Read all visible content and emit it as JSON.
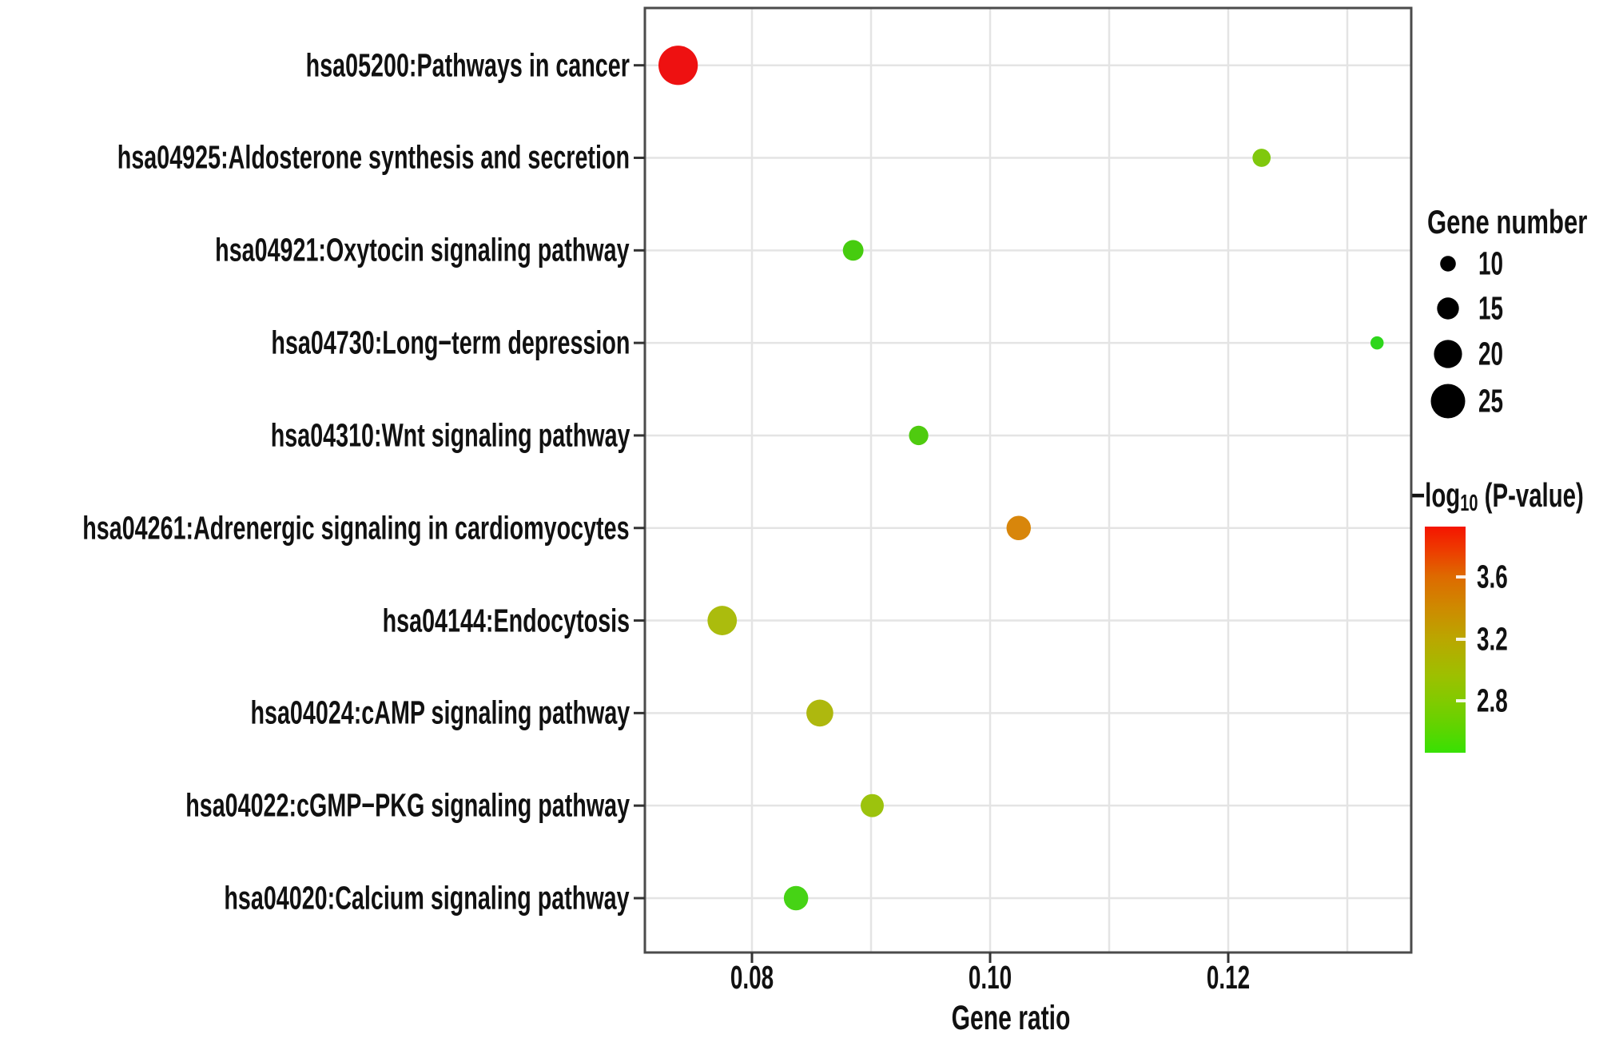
{
  "chart_data": {
    "type": "scatter",
    "xlabel": "Gene ratio",
    "x_axis": {
      "range": [
        0.071,
        0.1353
      ],
      "ticks": [
        {
          "value": 0.08,
          "label": "0.08"
        },
        {
          "value": 0.1,
          "label": "0.10"
        },
        {
          "value": 0.12,
          "label": "0.12"
        }
      ],
      "gridlines": [
        0.08,
        0.09,
        0.1,
        0.11,
        0.12,
        0.13
      ]
    },
    "points": [
      {
        "pathway": "hsa05200:Pathways in cancer",
        "gene_ratio": 0.0738,
        "gene_number": 29,
        "neg_log10_p": 3.9,
        "color": "#EE1111"
      },
      {
        "pathway": "hsa04925:Aldosterone synthesis and secretion",
        "gene_ratio": 0.1228,
        "gene_number": 12,
        "neg_log10_p": 2.82,
        "color": "#80C80D"
      },
      {
        "pathway": "hsa04921:Oxytocin signaling pathway",
        "gene_ratio": 0.0885,
        "gene_number": 14,
        "neg_log10_p": 2.68,
        "color": "#46CC0F"
      },
      {
        "pathway": "hsa04730:Long−term depression",
        "gene_ratio": 0.1325,
        "gene_number": 8,
        "neg_log10_p": 2.55,
        "color": "#2ED61C"
      },
      {
        "pathway": "hsa04310:Wnt signaling pathway",
        "gene_ratio": 0.094,
        "gene_number": 13,
        "neg_log10_p": 2.7,
        "color": "#4FCB0F"
      },
      {
        "pathway": "hsa04261:Adrenergic signaling in cardiomyocytes",
        "gene_ratio": 0.1024,
        "gene_number": 17,
        "neg_log10_p": 3.42,
        "color": "#D8860B"
      },
      {
        "pathway": "hsa04144:Endocytosis",
        "gene_ratio": 0.0775,
        "gene_number": 21,
        "neg_log10_p": 3.1,
        "color": "#ABBC0D"
      },
      {
        "pathway": "hsa04024:cAMP signaling pathway",
        "gene_ratio": 0.0857,
        "gene_number": 19,
        "neg_log10_p": 3.08,
        "color": "#AEB80E"
      },
      {
        "pathway": "hsa04022:cGMP−PKG signaling pathway",
        "gene_ratio": 0.0901,
        "gene_number": 16,
        "neg_log10_p": 2.95,
        "color": "#9CC30D"
      },
      {
        "pathway": "hsa04020:Calcium signaling pathway",
        "gene_ratio": 0.0837,
        "gene_number": 17,
        "neg_log10_p": 2.62,
        "color": "#46D315"
      }
    ],
    "legend_size": {
      "title": "Gene number",
      "dot_color": "#000000",
      "items": [
        {
          "value": 10,
          "label": "10"
        },
        {
          "value": 15,
          "label": "15"
        },
        {
          "value": 20,
          "label": "20"
        },
        {
          "value": 25,
          "label": "25"
        }
      ]
    },
    "legend_color": {
      "title_prefix": "−log",
      "title_sub": "10",
      "title_suffix": " (P-value)",
      "domain": [
        2.49,
        3.96
      ],
      "ticks": [
        {
          "value": 3.6,
          "label": "3.6"
        },
        {
          "value": 3.2,
          "label": "3.2"
        },
        {
          "value": 2.8,
          "label": "2.8"
        }
      ],
      "gradient_stops": [
        {
          "color": "#38E103",
          "pos": 0
        },
        {
          "color": "#62D300",
          "pos": 12
        },
        {
          "color": "#7FCB00",
          "pos": 22
        },
        {
          "color": "#9DC000",
          "pos": 34
        },
        {
          "color": "#BAA700",
          "pos": 50
        },
        {
          "color": "#CE8A00",
          "pos": 64
        },
        {
          "color": "#DE6A00",
          "pos": 78
        },
        {
          "color": "#EE3A00",
          "pos": 90
        },
        {
          "color": "#F51400",
          "pos": 100
        }
      ]
    },
    "style_colors": {
      "panel_border": "#4B4B4B",
      "gridline": "#E4E4E4",
      "tick_mark": "#333333",
      "text": "#111111"
    }
  }
}
